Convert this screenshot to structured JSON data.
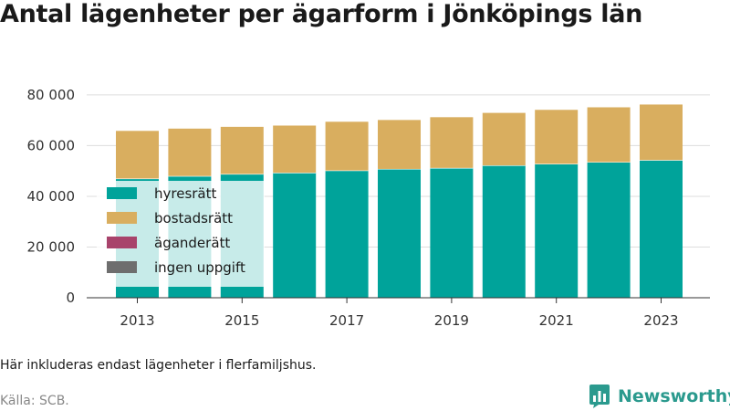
{
  "title": "Antal lägenheter per ägarform i Jönköpings län",
  "note": "Här inkluderas endast lägenheter i flerfamiljshus.",
  "source": "Källa: SCB.",
  "brand": {
    "name": "Newsworthy",
    "icon": "bar-chart-logo-icon",
    "color": "#2b9a8e"
  },
  "chart_data": {
    "type": "bar",
    "stacked": true,
    "categories": [
      "2013",
      "2014",
      "2015",
      "2016",
      "2017",
      "2018",
      "2019",
      "2020",
      "2021",
      "2022",
      "2023"
    ],
    "x_tick_labels": [
      "2013",
      "2015",
      "2017",
      "2019",
      "2021",
      "2023"
    ],
    "ylim": [
      0,
      85000
    ],
    "y_ticks": [
      0,
      20000,
      40000,
      60000,
      80000
    ],
    "y_tick_labels": [
      "0",
      "20 000",
      "40 000",
      "60 000",
      "80 000"
    ],
    "grid": true,
    "legend_position": "left-inside",
    "series": [
      {
        "name": "hyresrätt",
        "color": "#00a39a",
        "values": [
          47000,
          48000,
          48800,
          49300,
          50200,
          50800,
          51200,
          52200,
          52800,
          53500,
          54300
        ]
      },
      {
        "name": "bostadsrätt",
        "color": "#d9ae5f",
        "values": [
          18800,
          18700,
          18600,
          18600,
          19200,
          19300,
          20000,
          20700,
          21300,
          21600,
          21900
        ]
      },
      {
        "name": "äganderätt",
        "color": "#a8436b",
        "values": [
          0,
          0,
          0,
          0,
          0,
          0,
          0,
          0,
          0,
          0,
          0
        ]
      },
      {
        "name": "ingen uppgift",
        "color": "#6e6e6e",
        "values": [
          0,
          0,
          0,
          0,
          0,
          0,
          0,
          0,
          0,
          0,
          0
        ]
      }
    ]
  }
}
